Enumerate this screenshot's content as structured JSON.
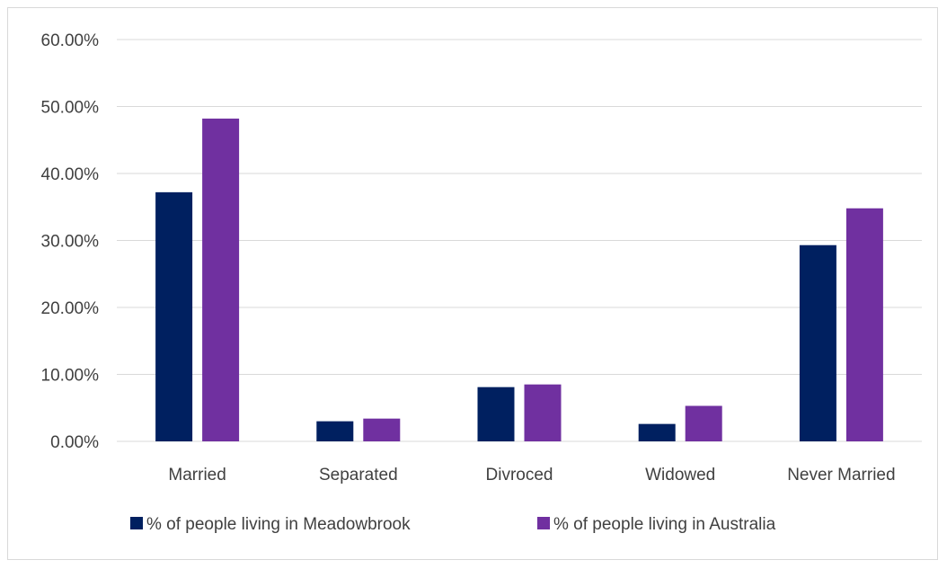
{
  "chart_data": {
    "type": "bar",
    "title": "",
    "xlabel": "",
    "ylabel": "",
    "categories": [
      "Married",
      "Separated",
      "Divroced",
      "Widowed",
      "Never Married"
    ],
    "series": [
      {
        "name": "% of people living in Meadowbrook",
        "color": "#002060",
        "values": [
          37.2,
          3.0,
          8.1,
          2.6,
          29.3
        ]
      },
      {
        "name": "% of people living in Australia",
        "color": "#7030A0",
        "values": [
          48.2,
          3.4,
          8.5,
          5.3,
          34.8
        ]
      }
    ],
    "ylim": [
      0,
      60
    ],
    "yticks": [
      0,
      10,
      20,
      30,
      40,
      50,
      60
    ],
    "ytick_labels": [
      "0.00%",
      "10.00%",
      "20.00%",
      "30.00%",
      "40.00%",
      "50.00%",
      "60.00%"
    ],
    "grid": true,
    "legend_position": "bottom"
  }
}
